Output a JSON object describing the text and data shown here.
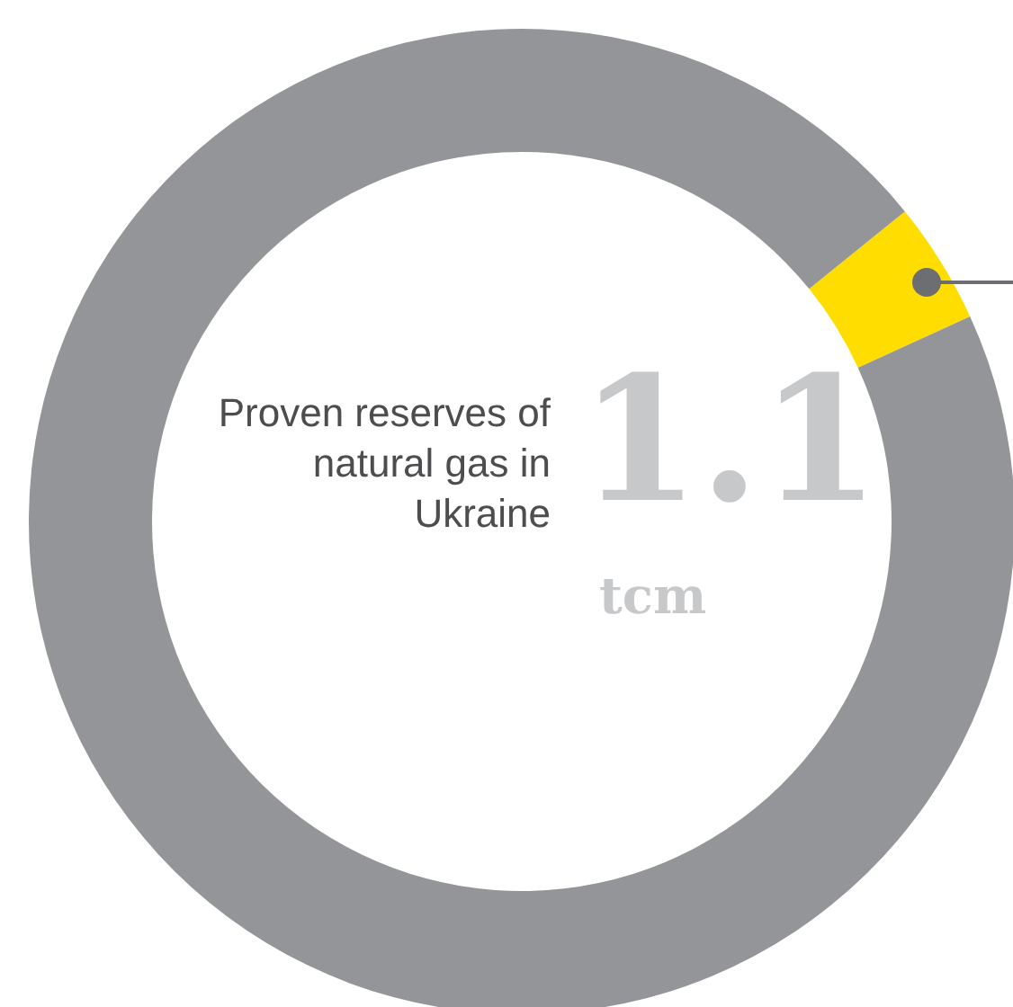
{
  "chart_data": {
    "type": "donut",
    "title": "Proven reserves of natural gas in Ukraine",
    "annotations": [
      "1.1",
      "tcm"
    ],
    "categories": [
      null,
      null
    ],
    "values": [
      4,
      96
    ],
    "colors": [
      "#ffdd00",
      "#939598"
    ],
    "legend": false
  }
}
